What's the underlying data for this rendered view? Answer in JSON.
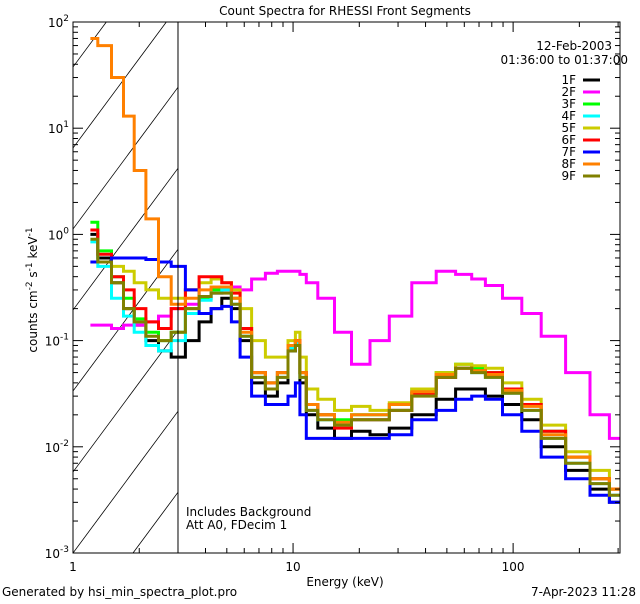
{
  "chart_data": {
    "type": "line",
    "title": "Count Spectra for RHESSI Front Segments",
    "xlabel": "Energy (keV)",
    "ylabel_parts": [
      "counts cm",
      "-2",
      " s",
      "-1",
      " keV",
      "-1"
    ],
    "xscale": "log",
    "yscale": "log",
    "xlim": [
      1,
      306
    ],
    "ylim": [
      0.001,
      100
    ],
    "x_tick_labels": [
      {
        "v": 1,
        "t": "1"
      },
      {
        "v": 10,
        "t": "10"
      },
      {
        "v": 100,
        "t": "100"
      }
    ],
    "y_tick_labels": [
      {
        "v": 100,
        "e": "2"
      },
      {
        "v": 10,
        "e": "1"
      },
      {
        "v": 1,
        "e": "0"
      },
      {
        "v": 0.1,
        "e": "-1"
      },
      {
        "v": 0.01,
        "e": "-2"
      },
      {
        "v": 0.001,
        "e": "-3"
      }
    ],
    "y_tick_base": "10",
    "excluded_region_keV": [
      1,
      3
    ],
    "date": "12-Feb-2003",
    "time_range": "01:36:00 to 01:37:00",
    "annotations": [
      "Includes Background",
      "Att A0, FDecim 1"
    ],
    "legend_position": "top-right",
    "energies": [
      1.2,
      1.4,
      1.6,
      1.8,
      2.0,
      2.3,
      2.6,
      3,
      3.5,
      4,
      4.5,
      5,
      5.5,
      6,
      7,
      8,
      9,
      10,
      10.5,
      11,
      12,
      14,
      17,
      20,
      25,
      30,
      40,
      50,
      60,
      70,
      80,
      100,
      120,
      150,
      200,
      250,
      300
    ],
    "series": [
      {
        "name": "1F",
        "color": "#000000",
        "values": [
          1.0,
          0.6,
          0.35,
          0.2,
          0.14,
          0.1,
          0.08,
          0.07,
          0.1,
          0.15,
          0.2,
          0.25,
          0.2,
          0.1,
          0.04,
          0.03,
          0.04,
          0.08,
          0.1,
          0.04,
          0.02,
          0.015,
          0.012,
          0.014,
          0.013,
          0.015,
          0.02,
          0.028,
          0.035,
          0.035,
          0.03,
          0.025,
          0.018,
          0.01,
          0.006,
          0.004,
          0.003
        ]
      },
      {
        "name": "2F",
        "color": "#ff00ff",
        "values": [
          0.14,
          0.14,
          0.13,
          0.14,
          0.14,
          0.15,
          0.17,
          0.2,
          0.22,
          0.25,
          0.28,
          0.3,
          0.32,
          0.3,
          0.38,
          0.43,
          0.45,
          0.45,
          0.45,
          0.42,
          0.35,
          0.25,
          0.12,
          0.06,
          0.1,
          0.17,
          0.35,
          0.45,
          0.42,
          0.38,
          0.33,
          0.25,
          0.18,
          0.11,
          0.05,
          0.02,
          0.012
        ]
      },
      {
        "name": "3F",
        "color": "#00ff00",
        "values": [
          1.3,
          0.7,
          0.4,
          0.25,
          0.16,
          0.12,
          0.1,
          0.12,
          0.2,
          0.25,
          0.3,
          0.32,
          0.25,
          0.13,
          0.05,
          0.04,
          0.05,
          0.09,
          0.1,
          0.05,
          0.025,
          0.02,
          0.018,
          0.02,
          0.02,
          0.025,
          0.035,
          0.05,
          0.06,
          0.055,
          0.05,
          0.035,
          0.025,
          0.014,
          0.008,
          0.005,
          0.004
        ]
      },
      {
        "name": "4F",
        "color": "#00ffff",
        "values": [
          0.85,
          0.5,
          0.25,
          0.17,
          0.12,
          0.09,
          0.08,
          0.1,
          0.18,
          0.24,
          0.28,
          0.3,
          0.22,
          0.11,
          0.045,
          0.035,
          0.045,
          0.085,
          0.095,
          0.045,
          0.022,
          0.018,
          0.016,
          0.018,
          0.018,
          0.022,
          0.032,
          0.045,
          0.055,
          0.05,
          0.045,
          0.032,
          0.022,
          0.012,
          0.007,
          0.0045,
          0.0035
        ]
      },
      {
        "name": "5F",
        "color": "#cccc00",
        "values": [
          0.55,
          0.55,
          0.5,
          0.45,
          0.35,
          0.3,
          0.25,
          0.25,
          0.3,
          0.35,
          0.38,
          0.35,
          0.3,
          0.2,
          0.1,
          0.07,
          0.07,
          0.1,
          0.12,
          0.07,
          0.035,
          0.028,
          0.022,
          0.024,
          0.022,
          0.026,
          0.035,
          0.05,
          0.06,
          0.058,
          0.055,
          0.04,
          0.028,
          0.016,
          0.009,
          0.006,
          0.004
        ]
      },
      {
        "name": "6F",
        "color": "#ff0000",
        "values": [
          1.1,
          0.65,
          0.4,
          0.3,
          0.2,
          0.15,
          0.13,
          0.2,
          0.3,
          0.4,
          0.4,
          0.35,
          0.28,
          0.13,
          0.05,
          0.04,
          0.05,
          0.09,
          0.1,
          0.05,
          0.025,
          0.02,
          0.015,
          0.018,
          0.018,
          0.022,
          0.032,
          0.045,
          0.055,
          0.052,
          0.05,
          0.035,
          0.025,
          0.014,
          0.008,
          0.005,
          0.004
        ]
      },
      {
        "name": "7F",
        "color": "#0000ff",
        "values": [
          0.55,
          0.55,
          0.6,
          0.6,
          0.6,
          0.58,
          0.55,
          0.5,
          0.3,
          0.18,
          0.2,
          0.21,
          0.15,
          0.07,
          0.03,
          0.025,
          0.025,
          0.03,
          0.04,
          0.02,
          0.012,
          0.012,
          0.012,
          0.012,
          0.012,
          0.013,
          0.018,
          0.022,
          0.028,
          0.03,
          0.028,
          0.02,
          0.014,
          0.008,
          0.005,
          0.0035,
          0.003
        ]
      },
      {
        "name": "8F",
        "color": "#ff8000",
        "values": [
          70,
          60,
          30,
          13,
          4,
          1.4,
          0.4,
          0.22,
          0.25,
          0.3,
          0.32,
          0.32,
          0.25,
          0.12,
          0.05,
          0.04,
          0.05,
          0.09,
          0.1,
          0.05,
          0.025,
          0.02,
          0.017,
          0.02,
          0.02,
          0.025,
          0.033,
          0.048,
          0.055,
          0.052,
          0.048,
          0.034,
          0.024,
          0.013,
          0.008,
          0.005,
          0.004
        ]
      },
      {
        "name": "9F",
        "color": "#808000",
        "values": [
          0.9,
          0.55,
          0.35,
          0.2,
          0.15,
          0.11,
          0.1,
          0.12,
          0.2,
          0.26,
          0.28,
          0.28,
          0.22,
          0.11,
          0.045,
          0.035,
          0.045,
          0.08,
          0.09,
          0.045,
          0.022,
          0.018,
          0.016,
          0.018,
          0.018,
          0.022,
          0.03,
          0.045,
          0.055,
          0.05,
          0.045,
          0.032,
          0.022,
          0.012,
          0.007,
          0.0045,
          0.0035
        ]
      }
    ]
  },
  "footer": {
    "generated_by": "Generated by hsi_min_spectra_plot.pro",
    "timestamp": "7-Apr-2023 11:28"
  }
}
